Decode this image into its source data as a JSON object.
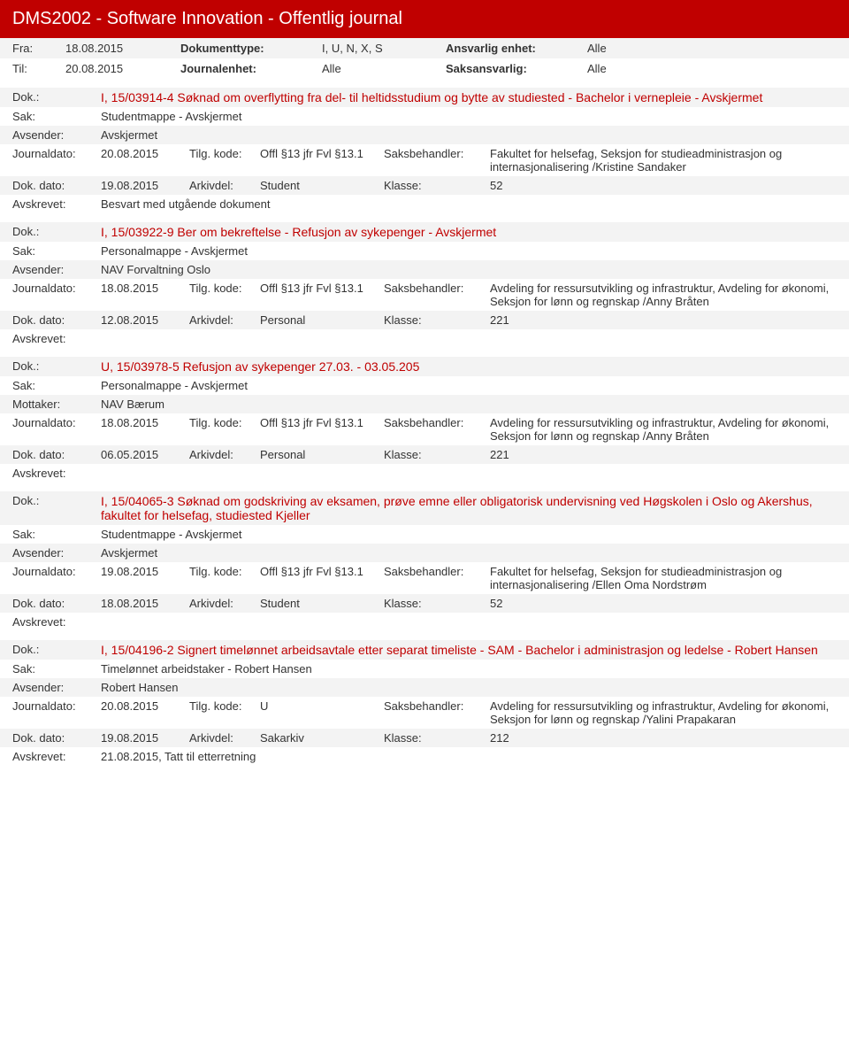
{
  "header": {
    "title": "DMS2002 - Software Innovation - Offentlig journal"
  },
  "meta": {
    "fra_label": "Fra:",
    "fra": "18.08.2015",
    "til_label": "Til:",
    "til": "20.08.2015",
    "doktype_label": "Dokumenttype:",
    "doktype": "I, U, N, X, S",
    "journalenhet_label": "Journalenhet:",
    "journalenhet": "Alle",
    "ansvarlig_label": "Ansvarlig enhet:",
    "ansvarlig": "Alle",
    "saksansvarlig_label": "Saksansvarlig:",
    "saksansvarlig": "Alle"
  },
  "labels": {
    "dok": "Dok.:",
    "sak": "Sak:",
    "avsender": "Avsender:",
    "mottaker": "Mottaker:",
    "journaldato": "Journaldato:",
    "tilg": "Tilg. kode:",
    "saksbehandler": "Saksbehandler:",
    "dokdato": "Dok. dato:",
    "arkivdel": "Arkivdel:",
    "klasse": "Klasse:",
    "avskrevet": "Avskrevet:"
  },
  "entries": [
    {
      "dok": "I, 15/03914-4 Søknad om overflytting fra del- til heltidsstudium og bytte av studiested - Bachelor i vernepleie - Avskjermet",
      "sak": "Studentmappe - Avskjermet",
      "party_label": "Avsender:",
      "party": "Avskjermet",
      "journaldato": "20.08.2015",
      "tilg": "Offl §13 jfr Fvl §13.1",
      "sb": "Fakultet for helsefag, Seksjon for studieadministrasjon og internasjonalisering /Kristine Sandaker",
      "dokdato": "19.08.2015",
      "arkivdel": "Student",
      "klasse": "52",
      "avskrevet": "Besvart med utgående dokument"
    },
    {
      "dok": "I, 15/03922-9 Ber om bekreftelse - Refusjon av sykepenger - Avskjermet",
      "sak": "Personalmappe - Avskjermet",
      "party_label": "Avsender:",
      "party": "NAV Forvaltning Oslo",
      "journaldato": "18.08.2015",
      "tilg": "Offl §13 jfr Fvl §13.1",
      "sb": "Avdeling for ressursutvikling og infrastruktur, Avdeling for økonomi, Seksjon for lønn og regnskap /Anny Bråten",
      "dokdato": "12.08.2015",
      "arkivdel": "Personal",
      "klasse": "221",
      "avskrevet": ""
    },
    {
      "dok": "U, 15/03978-5 Refusjon av sykepenger 27.03. - 03.05.205",
      "sak": "Personalmappe - Avskjermet",
      "party_label": "Mottaker:",
      "party": "NAV Bærum",
      "journaldato": "18.08.2015",
      "tilg": "Offl §13 jfr Fvl §13.1",
      "sb": "Avdeling for ressursutvikling og infrastruktur, Avdeling for økonomi, Seksjon for lønn og regnskap /Anny Bråten",
      "dokdato": "06.05.2015",
      "arkivdel": "Personal",
      "klasse": "221",
      "avskrevet": ""
    },
    {
      "dok": "I, 15/04065-3 Søknad om godskriving av eksamen, prøve emne eller obligatorisk undervisning ved Høgskolen i Oslo og Akershus, fakultet for helsefag, studiested Kjeller",
      "sak": "Studentmappe - Avskjermet",
      "party_label": "Avsender:",
      "party": "Avskjermet",
      "journaldato": "19.08.2015",
      "tilg": "Offl §13 jfr Fvl §13.1",
      "sb": "Fakultet for helsefag, Seksjon for studieadministrasjon og internasjonalisering /Ellen Oma Nordstrøm",
      "dokdato": "18.08.2015",
      "arkivdel": "Student",
      "klasse": "52",
      "avskrevet": ""
    },
    {
      "dok": "I, 15/04196-2 Signert timelønnet arbeidsavtale etter separat timeliste - SAM - Bachelor i administrasjon og ledelse - Robert Hansen",
      "sak": "Timelønnet arbeidstaker - Robert Hansen",
      "party_label": "Avsender:",
      "party": "Robert Hansen",
      "journaldato": "20.08.2015",
      "tilg": "U",
      "sb": "Avdeling for ressursutvikling og infrastruktur, Avdeling for økonomi, Seksjon for lønn og regnskap /Yalini Prapakaran",
      "dokdato": "19.08.2015",
      "arkivdel": "Sakarkiv",
      "klasse": "212",
      "avskrevet": "21.08.2015, Tatt til etterretning"
    }
  ]
}
